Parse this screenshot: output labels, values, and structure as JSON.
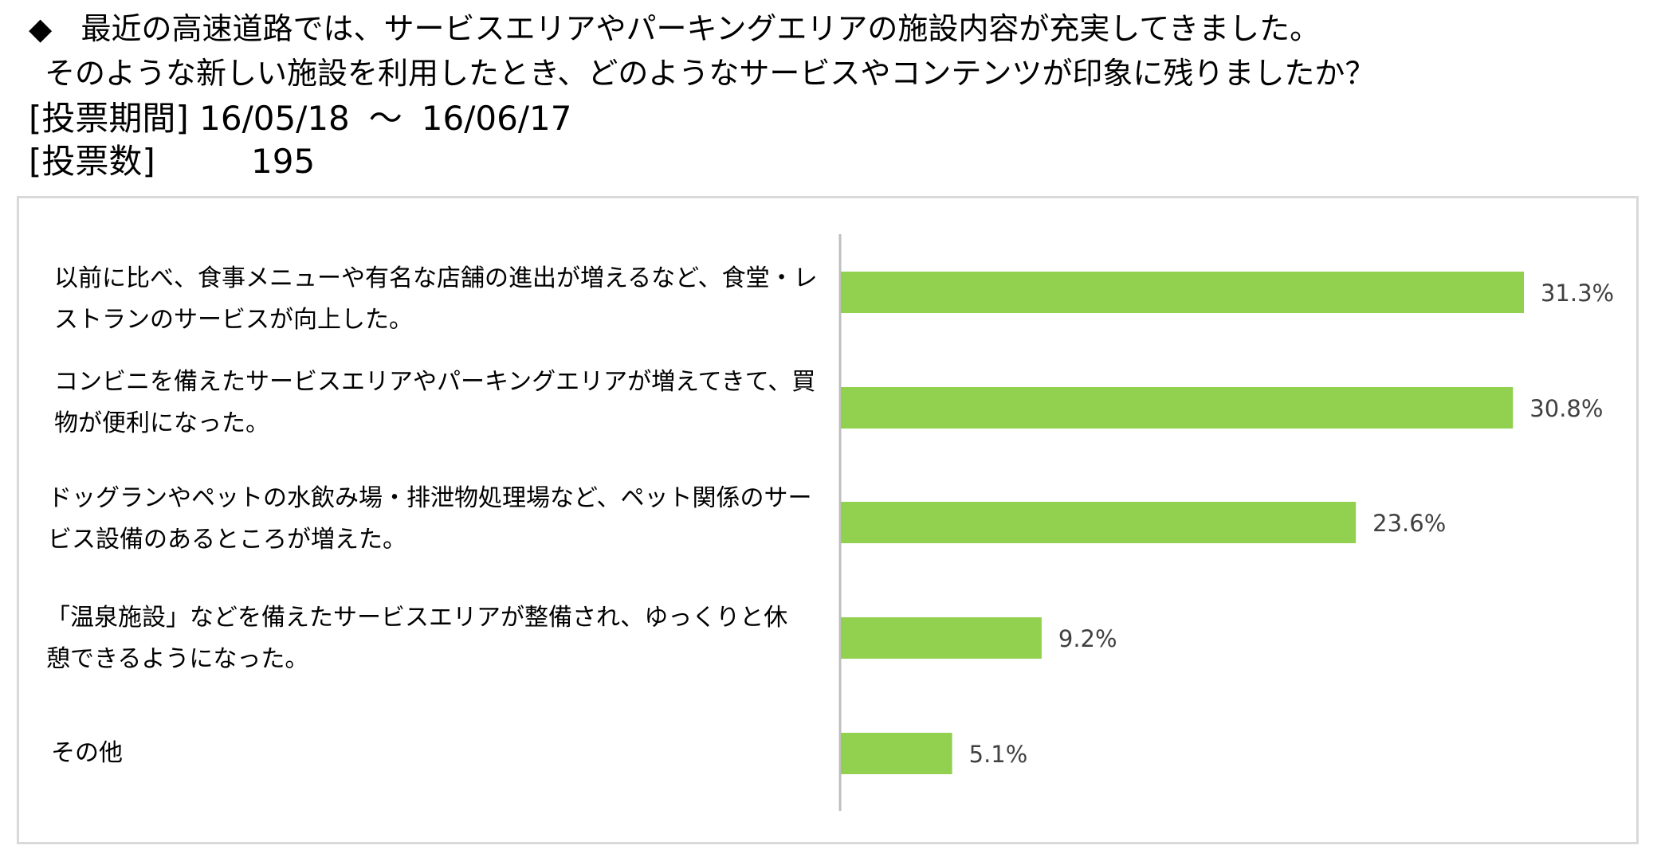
{
  "header": {
    "bullet": "◆",
    "question_line1": "最近の高速道路では、サービスエリアやパーキングエリアの施設内容が充実してきました。",
    "question_line2": "そのような新しい施設を利用したとき、どのようなサービスやコンテンツが印象に残りましたか？",
    "period_label": "[投票期間]",
    "period_start": "16/05/18",
    "period_sep": "～",
    "period_end": "16/06/17",
    "votes_label": "[投票数]",
    "votes_value": "195"
  },
  "colors": {
    "bar": "#92d050",
    "axis": "#bfbfbf",
    "panel_border": "#d9d9d9",
    "label": "#404040"
  },
  "chart_data": {
    "type": "bar",
    "orientation": "horizontal",
    "categories": [
      "以前に比べ、食事メニューや有名な店舗の進出が増えるなど、食堂・レストランのサービスが向上した。",
      "コンビニを備えたサービスエリアやパーキングエリアが増えてきて、買物が便利になった。",
      "ドッグランやペットの水飲み場・排泄物処理場など、ペット関係のサービス設備のあるところが増えた。",
      "「温泉施設」などを備えたサービスエリアが整備され、ゆっくりと休憩できるようになった。",
      "その他"
    ],
    "values": [
      31.3,
      30.8,
      23.6,
      9.2,
      5.1
    ],
    "value_labels": [
      "31.3%",
      "30.8%",
      "23.6%",
      "9.2%",
      "5.1%"
    ],
    "unit": "%",
    "grid": false,
    "legend": "none"
  }
}
